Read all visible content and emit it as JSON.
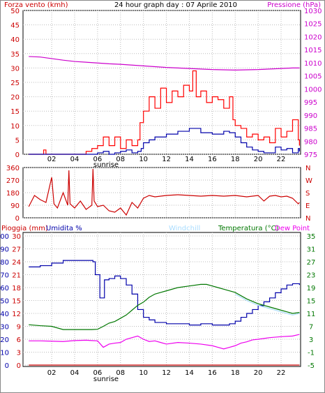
{
  "chart_data": [
    {
      "type": "line",
      "title": "24 hour graph day : 07 Aprile 2010",
      "left_axis_label": "Forza vento (kmh)",
      "right_axis_label": "Pressione (hPa)",
      "x_ticks": [
        "02",
        "04",
        "06",
        "08",
        "10",
        "12",
        "14",
        "16",
        "18",
        "20",
        "22"
      ],
      "annotation": "sunrise",
      "left_ylim": [
        0,
        50
      ],
      "left_ticks": [
        "0",
        "5",
        "10",
        "15",
        "20",
        "25",
        "30",
        "35",
        "40",
        "45",
        "50"
      ],
      "right_ylim": [
        975,
        1030
      ],
      "right_ticks": [
        "975",
        "980",
        "985",
        "990",
        "995",
        "1000",
        "1005",
        "1010",
        "1015",
        "1020",
        "1025",
        "1030"
      ],
      "grid": true,
      "series": [
        {
          "name": "Pressione (hPa)",
          "color": "#cc00cc",
          "axis": "right",
          "x": [
            0,
            1,
            2,
            3,
            4,
            5,
            6,
            7,
            8,
            9,
            10,
            11,
            12,
            13,
            14,
            15,
            16,
            17,
            18,
            19,
            20,
            21,
            22,
            23,
            23.6
          ],
          "y": [
            1012.4,
            1012.2,
            1011.6,
            1011.0,
            1010.5,
            1010.2,
            1009.9,
            1009.6,
            1009.4,
            1009.1,
            1008.8,
            1008.5,
            1008.2,
            1008.0,
            1007.8,
            1007.6,
            1007.4,
            1007.3,
            1007.2,
            1007.3,
            1007.4,
            1007.6,
            1007.8,
            1008.0,
            1008.0
          ]
        },
        {
          "name": "Raffica (kmh)",
          "color": "#ff0000",
          "axis": "left",
          "x": [
            0,
            1.2,
            1.3,
            1.5,
            2.5,
            3.5,
            4.5,
            5.0,
            5.5,
            6.0,
            6.5,
            7.0,
            7.5,
            8.0,
            8.5,
            9.0,
            9.5,
            9.7,
            10.0,
            10.5,
            11.0,
            11.5,
            12.0,
            12.5,
            13.0,
            13.5,
            14.0,
            14.3,
            14.6,
            15.0,
            15.5,
            16.0,
            16.5,
            17.0,
            17.5,
            17.8,
            18.0,
            18.5,
            19.0,
            19.5,
            20.0,
            20.5,
            21.0,
            21.5,
            22.0,
            22.5,
            23.0,
            23.5,
            23.6
          ],
          "y": [
            0,
            0,
            1.5,
            0,
            0,
            0,
            0,
            1,
            2,
            3,
            6,
            3,
            6,
            2,
            5,
            3,
            5,
            11,
            15,
            20,
            16,
            23,
            18,
            22,
            20,
            24,
            22,
            29,
            20,
            22,
            18,
            20,
            19,
            16,
            20,
            12,
            10,
            9,
            6,
            7,
            5,
            6,
            4,
            9,
            6,
            8,
            12,
            5,
            3
          ]
        },
        {
          "name": "Vento (kmh)",
          "color": "#0000aa",
          "axis": "left",
          "x": [
            0,
            1,
            2,
            3,
            4,
            5,
            5.5,
            6,
            6.5,
            7,
            7.5,
            8,
            8.5,
            9,
            9.5,
            9.8,
            10,
            10.5,
            11,
            12,
            13,
            14,
            15,
            16,
            17,
            17.5,
            18,
            18.5,
            19,
            19.5,
            20,
            20.5,
            21,
            21.5,
            22,
            22.5,
            23,
            23.5,
            23.6
          ],
          "y": [
            0,
            0,
            0,
            0,
            0,
            0,
            0,
            0.5,
            1,
            0,
            0.5,
            1,
            1.5,
            0.5,
            1,
            2,
            4,
            5,
            6,
            7,
            8,
            9,
            7.5,
            7,
            8,
            7.5,
            6,
            4,
            2.5,
            1.5,
            1,
            0.5,
            0.5,
            2.5,
            1.5,
            2,
            0.5,
            2,
            1
          ]
        }
      ]
    },
    {
      "type": "line",
      "title": "",
      "left_ylim": [
        0,
        360
      ],
      "left_ticks": [
        "0",
        "90",
        "180",
        "270",
        "360"
      ],
      "right_labels": [
        "N",
        "W",
        "S",
        "E",
        "N"
      ],
      "grid": true,
      "series": [
        {
          "name": "Direzione vento",
          "color": "#cc0000",
          "axis": "left",
          "x": [
            0,
            0.5,
            1.0,
            1.5,
            2.0,
            2.2,
            2.5,
            3.0,
            3.4,
            3.5,
            3.6,
            4.0,
            4.5,
            5.0,
            5.5,
            5.6,
            5.7,
            6.0,
            6.5,
            7.0,
            7.5,
            8.0,
            8.5,
            9.0,
            9.5,
            10.0,
            10.5,
            11.0,
            12.0,
            13.0,
            14.0,
            15.0,
            16.0,
            17.0,
            18.0,
            19.0,
            20.0,
            20.5,
            21.0,
            21.5,
            22.0,
            22.5,
            23.0,
            23.5,
            23.6
          ],
          "y": [
            80,
            160,
            130,
            110,
            290,
            100,
            70,
            180,
            90,
            340,
            100,
            70,
            120,
            60,
            90,
            350,
            120,
            80,
            90,
            50,
            40,
            70,
            20,
            110,
            70,
            140,
            160,
            150,
            160,
            165,
            160,
            155,
            160,
            155,
            160,
            150,
            160,
            120,
            155,
            160,
            150,
            155,
            140,
            100,
            110
          ]
        }
      ]
    },
    {
      "type": "line",
      "title": "",
      "header_labels": [
        "Pioggia (mm)",
        "Umidita %",
        "Windchill",
        "Temperatura (°C)",
        "Dew Point"
      ],
      "x_ticks": [
        "02",
        "04",
        "06",
        "08",
        "10",
        "12",
        "14",
        "16",
        "18",
        "20",
        "22"
      ],
      "annotation": "sunrise",
      "rain_ticks": [
        "0",
        "10",
        "20",
        "30",
        "40",
        "50",
        "60",
        "70",
        "80",
        "90",
        "100"
      ],
      "humidity_ticks": [
        "0",
        "3",
        "6",
        "9",
        "12",
        "15",
        "18",
        "21",
        "24",
        "27",
        "30"
      ],
      "right_ylim": [
        -5,
        35
      ],
      "right_ticks": [
        "-5",
        "-1",
        "3",
        "7",
        "11",
        "15",
        "19",
        "23",
        "27",
        "31",
        "35"
      ],
      "grid": true,
      "series": [
        {
          "name": "Umidita %",
          "color": "#0000aa",
          "axis": "humidity_pct",
          "x": [
            0,
            1,
            2,
            3,
            4,
            5,
            5.6,
            5.8,
            6.2,
            6.6,
            7.0,
            7.5,
            8.0,
            8.5,
            9.0,
            9.5,
            10.0,
            10.5,
            11.0,
            12.0,
            13.0,
            14.0,
            15.0,
            16.0,
            17.0,
            17.5,
            18.0,
            18.5,
            19.0,
            19.5,
            20.0,
            20.5,
            21.0,
            21.5,
            22.0,
            22.5,
            23.0,
            23.6
          ],
          "y": [
            76,
            77,
            79,
            81,
            81,
            81,
            80,
            70,
            52,
            66,
            67,
            69,
            67,
            62,
            55,
            43,
            37,
            35,
            33,
            32,
            32,
            31,
            32,
            31,
            31,
            32,
            34,
            37,
            40,
            43,
            46,
            49,
            52,
            56,
            59,
            62,
            63,
            62
          ]
        },
        {
          "name": "Temperatura (°C)",
          "color": "#007700",
          "axis": "temperature",
          "x": [
            0,
            1,
            2,
            3,
            4,
            5,
            5.5,
            6,
            6.5,
            7,
            7.5,
            8,
            8.5,
            9,
            9.5,
            10,
            10.5,
            11,
            11.5,
            12,
            13,
            14,
            15,
            15.5,
            16,
            16.5,
            17,
            18,
            19,
            20,
            21,
            22,
            22.5,
            23,
            23.6
          ],
          "y": [
            7.5,
            7.2,
            7.0,
            6.0,
            6.0,
            6.0,
            6.0,
            6.1,
            7.0,
            8.0,
            8.5,
            9.5,
            10.5,
            12.0,
            13.5,
            14.5,
            16.0,
            17.0,
            17.5,
            18.0,
            19.0,
            19.5,
            20.0,
            20.0,
            19.5,
            19.0,
            18.5,
            17.5,
            15.5,
            14.0,
            13.0,
            12.0,
            11.5,
            11.0,
            11.3
          ]
        },
        {
          "name": "Windchill",
          "color": "#aaddff",
          "axis": "temperature",
          "x": [
            18,
            19,
            20,
            21,
            22,
            22.5,
            23,
            23.6
          ],
          "y": [
            17.0,
            15.0,
            13.5,
            12.5,
            11.5,
            11.0,
            10.5,
            11.0
          ]
        },
        {
          "name": "Dew Point",
          "color": "#ee00ee",
          "axis": "temperature",
          "x": [
            0,
            1,
            2,
            3,
            4,
            5,
            5.5,
            6,
            6.5,
            7,
            7.5,
            8,
            8.5,
            9,
            9.5,
            10,
            10.5,
            11,
            11.5,
            12,
            13,
            14,
            15,
            16,
            16.5,
            17,
            17.5,
            18,
            18.5,
            19,
            19.5,
            20,
            21,
            22,
            23,
            23.6
          ],
          "y": [
            2.5,
            2.5,
            2.4,
            2.3,
            2.6,
            2.7,
            2.6,
            2.5,
            0.5,
            1.5,
            1.8,
            2.0,
            3.0,
            3.5,
            4.0,
            3.0,
            2.3,
            2.5,
            2.0,
            1.5,
            2.0,
            1.8,
            1.5,
            1.0,
            0.5,
            0.0,
            0.5,
            1.0,
            1.8,
            2.2,
            2.8,
            3.0,
            3.5,
            3.8,
            4.0,
            4.5
          ]
        },
        {
          "name": "Pioggia (mm)",
          "color": "#cc0000",
          "axis": "rain",
          "x": [
            0,
            23.6
          ],
          "y": [
            0,
            0
          ]
        }
      ]
    }
  ]
}
